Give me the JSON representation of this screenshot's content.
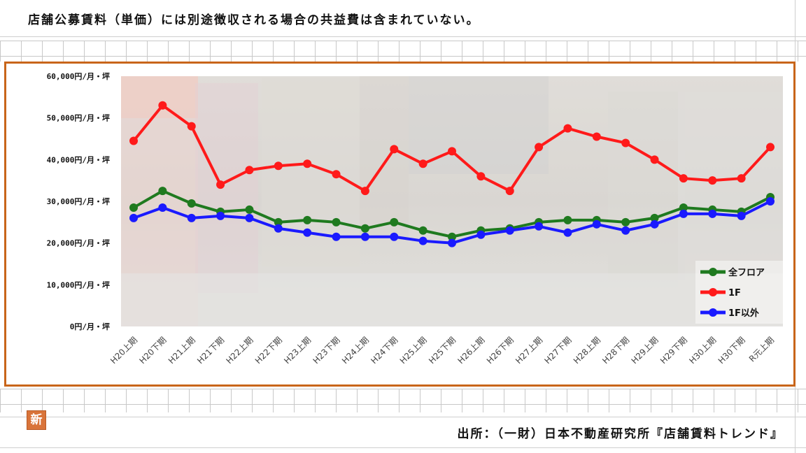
{
  "top_note": "店舗公募賃料（単価）には別途徴収される場合の共益費は含まれていない。",
  "source_note": "出所：（一財）日本不動産研究所『店舗賃料トレンド』",
  "new_badge": "新",
  "colors": {
    "frame": "#c8651a",
    "all_floor": "#1f7a1f",
    "first_floor": "#ff1a1a",
    "other_floors": "#1a1aff"
  },
  "chart_data": {
    "type": "line",
    "title": "",
    "xlabel": "",
    "ylabel": "",
    "ylim": [
      0,
      60000
    ],
    "y_ticks": [
      0,
      10000,
      20000,
      30000,
      40000,
      50000,
      60000
    ],
    "y_tick_labels": [
      "0円/月・坪",
      "10,000円/月・坪",
      "20,000円/月・坪",
      "30,000円/月・坪",
      "40,000円/月・坪",
      "50,000円/月・坪",
      "60,000円/月・坪"
    ],
    "grid": false,
    "legend_position": "bottom-right",
    "categories": [
      "H20上期",
      "H20下期",
      "H21上期",
      "H21下期",
      "H22上期",
      "H22下期",
      "H23上期",
      "H23下期",
      "H24上期",
      "H24下期",
      "H25上期",
      "H25下期",
      "H26上期",
      "H26下期",
      "H27上期",
      "H27下期",
      "H28上期",
      "H28下期",
      "H29上期",
      "H29下期",
      "H30上期",
      "H30下期",
      "R元上期"
    ],
    "series": [
      {
        "name": "全フロア",
        "color": "#1f7a1f",
        "values": [
          28500,
          32500,
          29500,
          27500,
          28000,
          25000,
          25500,
          25000,
          23500,
          25000,
          23000,
          21500,
          23000,
          23500,
          25000,
          25500,
          25500,
          25000,
          26000,
          28500,
          28000,
          27500,
          31000
        ]
      },
      {
        "name": "1F",
        "color": "#ff1a1a",
        "values": [
          44500,
          53000,
          48000,
          34000,
          37500,
          38500,
          39000,
          36500,
          32500,
          42500,
          39000,
          42000,
          36000,
          32500,
          43000,
          47500,
          45500,
          44000,
          40000,
          35500,
          35000,
          35500,
          43000
        ]
      },
      {
        "name": "1F以外",
        "color": "#1a1aff",
        "values": [
          26000,
          28500,
          26000,
          26500,
          26000,
          23500,
          22500,
          21500,
          21500,
          21500,
          20500,
          20000,
          22000,
          23000,
          24000,
          22500,
          24500,
          23000,
          24500,
          27000,
          27000,
          26500,
          30000
        ]
      }
    ]
  }
}
